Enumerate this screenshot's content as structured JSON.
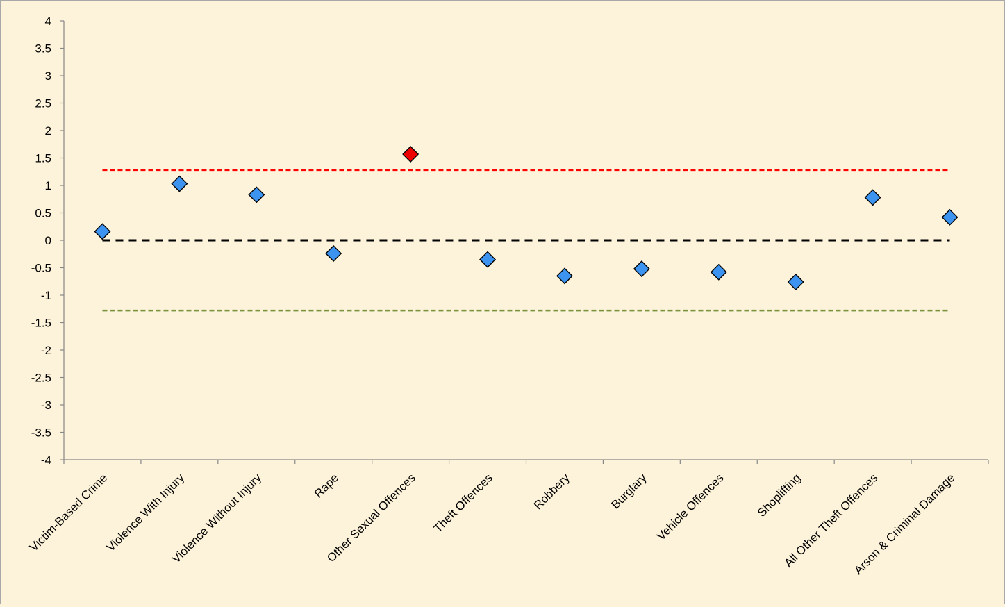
{
  "chart_data": {
    "type": "scatter",
    "title": "",
    "xlabel": "",
    "ylabel": "",
    "ylim": [
      -4,
      4
    ],
    "y_ticks": [
      "4",
      "3.5",
      "3",
      "2.5",
      "2",
      "1.5",
      "1",
      "0.5",
      "0",
      "-0.5",
      "-1",
      "-1.5",
      "-2",
      "-2.5",
      "-3",
      "-3.5",
      "-4"
    ],
    "y_tick_values": [
      4,
      3.5,
      3,
      2.5,
      2,
      1.5,
      1,
      0.5,
      0,
      -0.5,
      -1,
      -1.5,
      -2,
      -2.5,
      -3,
      -3.5,
      -4
    ],
    "categories": [
      "Victim-Based Crime",
      "Violence With Injury",
      "Violence Without Injury",
      "Rape",
      "Other Sexual Offences",
      "Theft Offences",
      "Robbery",
      "Burglary",
      "Vehicle Offences",
      "Shoplifting",
      "All Other Theft Offences",
      "Arson & Criminal Damage"
    ],
    "values": [
      0.16,
      1.03,
      0.83,
      -0.24,
      1.57,
      -0.35,
      -0.65,
      -0.52,
      -0.58,
      -0.76,
      0.78,
      0.42
    ],
    "reference_lines": [
      {
        "value": 1.28,
        "color": "#ff0000",
        "style": "dashed"
      },
      {
        "value": 0,
        "color": "#000000",
        "style": "dashed"
      },
      {
        "value": -1.28,
        "color": "#77933c",
        "style": "dashed"
      }
    ],
    "marker_color": "#3d94f0",
    "highlight_color": "#ee0000",
    "highlight_threshold": 1.28,
    "grid": false,
    "legend": "none"
  }
}
